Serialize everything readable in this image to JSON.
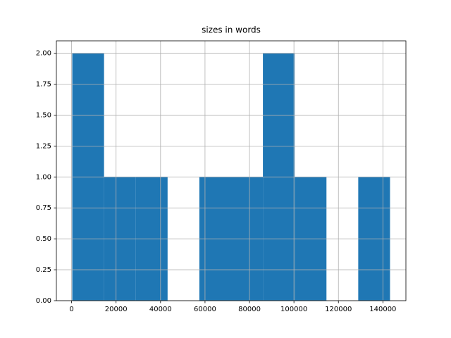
{
  "chart_data": {
    "type": "histogram",
    "title": "sizes in words",
    "bins": [
      300,
      14590,
      28880,
      43170,
      57460,
      71750,
      86040,
      100330,
      114620,
      128910,
      143200
    ],
    "counts": [
      2,
      1,
      1,
      0,
      1,
      1,
      2,
      1,
      0,
      1
    ],
    "color": "#1f77b4",
    "xlim": [
      -6845,
      150345
    ],
    "xticks": [
      0,
      20000,
      40000,
      60000,
      80000,
      100000,
      120000,
      140000
    ],
    "ylim": [
      0,
      2.1
    ],
    "yticks": [
      {
        "value": 0,
        "label": "0.00"
      },
      {
        "value": 0.25,
        "label": "0.25"
      },
      {
        "value": 0.5,
        "label": "0.50"
      },
      {
        "value": 0.75,
        "label": "0.75"
      },
      {
        "value": 1,
        "label": "1.00"
      },
      {
        "value": 1.25,
        "label": "1.25"
      },
      {
        "value": 1.5,
        "label": "1.50"
      },
      {
        "value": 1.75,
        "label": "1.75"
      },
      {
        "value": 2,
        "label": "2.00"
      }
    ],
    "grid": true
  }
}
